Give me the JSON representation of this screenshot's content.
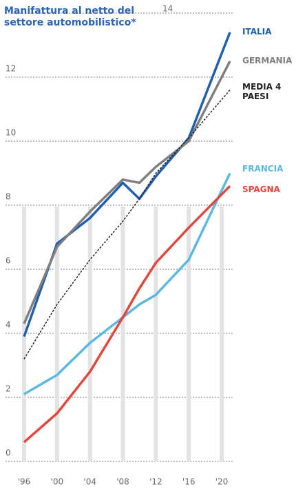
{
  "chart_data": {
    "type": "line",
    "title": "Manifattura al netto del settore automobilistico*",
    "x": [
      1996,
      2000,
      2004,
      2008,
      2010,
      2012,
      2016,
      2021
    ],
    "series": [
      {
        "name": "ITALIA",
        "color": "#1f5fb0",
        "dash": false,
        "values": [
          3.9,
          6.8,
          7.6,
          8.7,
          8.2,
          8.9,
          10.1,
          13.4
        ]
      },
      {
        "name": "GERMANIA",
        "color": "#7f7f7f",
        "dash": false,
        "values": [
          4.3,
          6.7,
          7.8,
          8.8,
          8.7,
          9.2,
          10.0,
          12.5
        ]
      },
      {
        "name": "MEDIA 4 PAESI",
        "color": "#222222",
        "dash": true,
        "values": [
          3.2,
          4.9,
          6.3,
          7.5,
          8.2,
          9.0,
          10.1,
          11.6
        ]
      },
      {
        "name": "FRANCIA",
        "color": "#5bb8e0",
        "dash": false,
        "values": [
          2.1,
          2.7,
          3.7,
          4.5,
          4.9,
          5.2,
          6.3,
          9.0
        ]
      },
      {
        "name": "SPAGNA",
        "color": "#e2463c",
        "dash": false,
        "values": [
          0.6,
          1.5,
          2.8,
          4.5,
          5.4,
          6.2,
          7.3,
          8.6
        ]
      }
    ],
    "xlim": [
      1996,
      2021
    ],
    "xticks": [
      {
        "value": 1996,
        "label": "'96"
      },
      {
        "value": 2000,
        "label": "'00"
      },
      {
        "value": 2004,
        "label": "'04"
      },
      {
        "value": 2008,
        "label": "'08"
      },
      {
        "value": 2012,
        "label": "'12"
      },
      {
        "value": 2016,
        "label": "'16"
      },
      {
        "value": 2020,
        "label": "'20"
      }
    ],
    "ylim": [
      0,
      14
    ],
    "yticks": [
      0,
      2,
      4,
      6,
      8,
      10,
      12,
      14
    ],
    "grid": true
  }
}
